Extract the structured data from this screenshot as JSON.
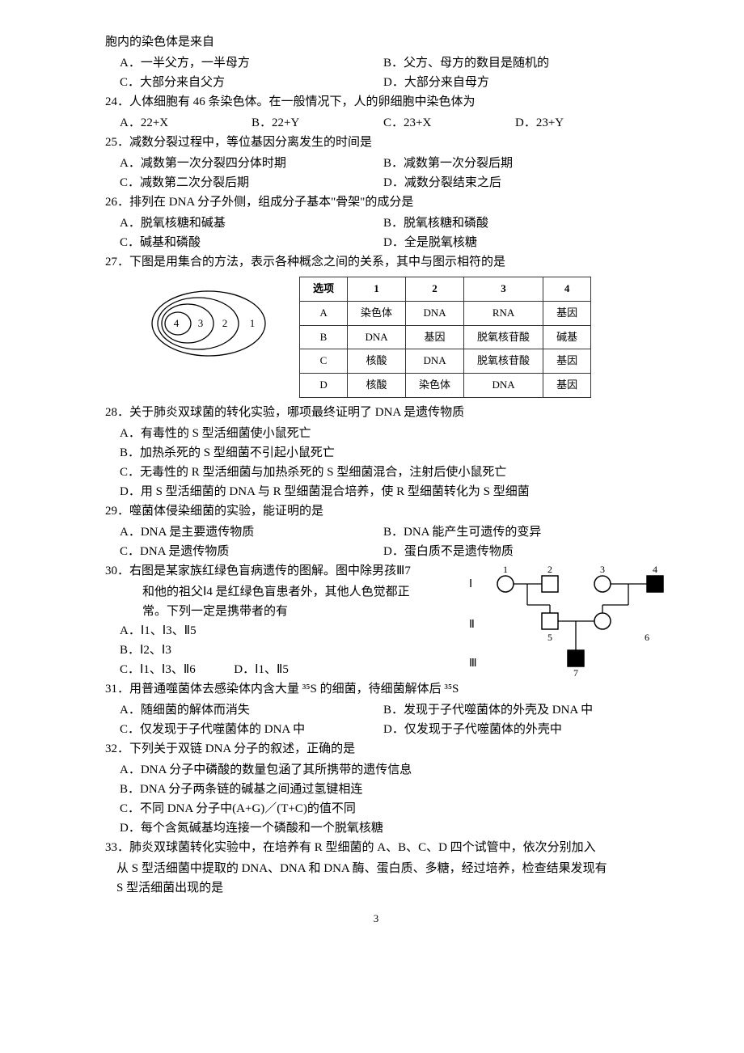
{
  "pre23": {
    "text": "胞内的染色体是来自",
    "opts": {
      "A": "A．一半父方，一半母方",
      "B": "B．父方、母方的数目是随机的",
      "C": "C．大部分来自父方",
      "D": "D．大部分来自母方"
    }
  },
  "q24": {
    "stem": "24．人体细胞有 46 条染色体。在一般情况下，人的卵细胞中染色体为",
    "A": "A．22+X",
    "B": "B．22+Y",
    "C": "C．23+X",
    "D": "D．23+Y"
  },
  "q25": {
    "stem": "25．减数分裂过程中，等位基因分离发生的时间是",
    "A": "A．减数第一次分裂四分体时期",
    "B": "B．减数第一次分裂后期",
    "C": "C．减数第二次分裂后期",
    "D": "D．减数分裂结束之后"
  },
  "q26": {
    "stem": "26．排列在 DNA 分子外侧，组成分子基本\"骨架\"的成分是",
    "A": "A．脱氧核糖和碱基",
    "B": "B．脱氧核糖和磷酸",
    "C": "C．碱基和磷酸",
    "D": "D．全是脱氧核糖"
  },
  "q27": {
    "stem": "27．下图是用集合的方法，表示各种概念之间的关系，其中与图示相符的是",
    "nested_labels": [
      "4",
      "3",
      "2",
      "1"
    ],
    "table": {
      "header": [
        "选项",
        "1",
        "2",
        "3",
        "4"
      ],
      "rows": [
        [
          "A",
          "染色体",
          "DNA",
          "RNA",
          "基因"
        ],
        [
          "B",
          "DNA",
          "基因",
          "脱氧核苷酸",
          "碱基"
        ],
        [
          "C",
          "核酸",
          "DNA",
          "脱氧核苷酸",
          "基因"
        ],
        [
          "D",
          "核酸",
          "染色体",
          "DNA",
          "基因"
        ]
      ]
    }
  },
  "q28": {
    "stem": "28．关于肺炎双球菌的转化实验，哪项最终证明了 DNA 是遗传物质",
    "A": "A．有毒性的 S 型活细菌使小鼠死亡",
    "B": "B．加热杀死的 S 型细菌不引起小鼠死亡",
    "C": "C．无毒性的 R 型活细菌与加热杀死的 S 型细菌混合，注射后使小鼠死亡",
    "D": "D．用 S 型活细菌的 DNA 与 R 型细菌混合培养，使 R 型细菌转化为 S 型细菌"
  },
  "q29": {
    "stem": "29．噬菌体侵染细菌的实验，能证明的是",
    "A": "A．DNA 是主要遗传物质",
    "B": "B．DNA 能产生可遗传的变异",
    "C": "C．DNA 是遗传物质",
    "D": "D．蛋白质不是遗传物质"
  },
  "q30": {
    "stem1": "30．右图是某家族红绿色盲病遗传的图解。图中除男孩Ⅲ7",
    "stem2": "和他的祖父Ⅰ4 是红绿色盲患者外，其他人色觉都正",
    "stem3": "常。下列一定是携带者的有",
    "A": "A．Ⅰ1、Ⅰ3、Ⅱ5",
    "B": "B．Ⅰ2、Ⅰ3",
    "C": "C．Ⅰ1、Ⅰ3、Ⅱ6",
    "D": "D．Ⅰ1、Ⅱ5",
    "gen_labels": {
      "I": "Ⅰ",
      "II": "Ⅱ",
      "III": "Ⅲ"
    },
    "top_nums": [
      "1",
      "2",
      "3",
      "4"
    ],
    "mid_nums": [
      "5",
      "6"
    ],
    "bot_num": "7"
  },
  "q31": {
    "stem": "31．用普通噬菌体去感染体内含大量 ³⁵S 的细菌，待细菌解体后 ³⁵S",
    "A": "A．随细菌的解体而消失",
    "B": "B．发现于子代噬菌体的外壳及 DNA 中",
    "C": "C．仅发现于子代噬菌体的 DNA 中",
    "D": "D．仅发现于子代噬菌体的外壳中"
  },
  "q32": {
    "stem": "32．下列关于双链 DNA 分子的叙述，正确的是",
    "A": "A．DNA 分子中磷酸的数量包涵了其所携带的遗传信息",
    "B": "B．DNA 分子两条链的碱基之间通过氢键相连",
    "C": "C．不同 DNA 分子中(A+G)／(T+C)的值不同",
    "D": "D．每个含氮碱基均连接一个磷酸和一个脱氧核糖"
  },
  "q33": {
    "stem1": "33．肺炎双球菌转化实验中，在培养有 R 型细菌的 A、B、C、D 四个试管中，依次分别加入",
    "stem2": "从 S 型活细菌中提取的 DNA、DNA 和 DNA 酶、蛋白质、多糖，经过培养，检查结果发现有",
    "stem3": "S 型活细菌出现的是"
  },
  "page_number": "3",
  "colors": {
    "text": "#000000",
    "bg": "#ffffff",
    "table_border": "#333333",
    "svg_stroke": "#000000",
    "fill_black": "#000000",
    "fill_white": "#ffffff"
  }
}
